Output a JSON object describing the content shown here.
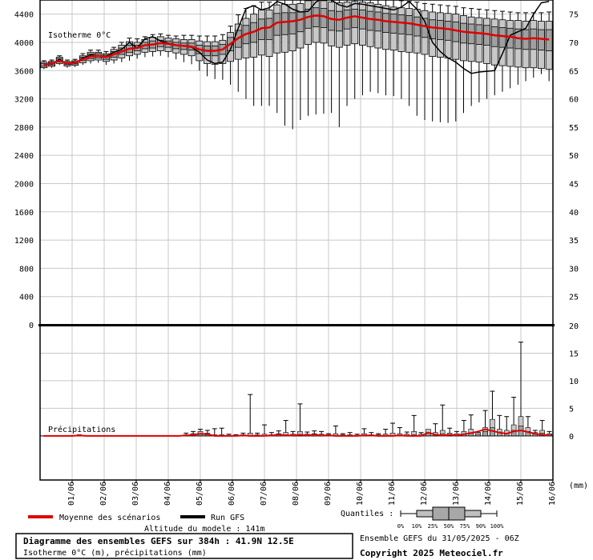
{
  "chart_data": [
    {
      "type": "box",
      "panel": "isotherm",
      "panel_label": "Isotherme 0°C",
      "units": "m",
      "x_labels": [
        "01/06",
        "02/06",
        "03/06",
        "04/06",
        "05/06",
        "06/06",
        "07/06",
        "08/06",
        "09/06",
        "10/06",
        "11/06",
        "12/06",
        "13/06",
        "14/06",
        "15/06",
        "16/06"
      ],
      "y_left_ticks": [
        0,
        400,
        800,
        1200,
        1600,
        2000,
        2400,
        2800,
        3200,
        3600,
        4000,
        4400
      ],
      "y_right_ticks": [
        25,
        30,
        35,
        40,
        45,
        50,
        55,
        60,
        65,
        70,
        75
      ],
      "ylim": [
        0,
        4600
      ],
      "grid": true,
      "series": [
        {
          "name": "Moyenne des scénarios",
          "color": "#e00000",
          "values": [
            3680,
            3700,
            3740,
            3700,
            3710,
            3760,
            3800,
            3810,
            3790,
            3830,
            3870,
            3910,
            3920,
            3960,
            3970,
            3990,
            3980,
            3960,
            3950,
            3940,
            3900,
            3880,
            3880,
            3900,
            3980,
            4060,
            4120,
            4150,
            4200,
            4210,
            4280,
            4290,
            4300,
            4320,
            4360,
            4380,
            4370,
            4330,
            4320,
            4350,
            4370,
            4350,
            4330,
            4320,
            4300,
            4290,
            4280,
            4270,
            4250,
            4230,
            4210,
            4200,
            4190,
            4170,
            4150,
            4140,
            4130,
            4120,
            4100,
            4090,
            4080,
            4060,
            4050,
            4060,
            4050,
            4040
          ]
        },
        {
          "name": "Run GFS",
          "color": "#000000",
          "values": [
            3680,
            3690,
            3760,
            3690,
            3700,
            3780,
            3820,
            3810,
            3800,
            3860,
            3900,
            4000,
            3920,
            4050,
            4080,
            4020,
            3990,
            3960,
            3950,
            3930,
            3860,
            3750,
            3700,
            3720,
            3900,
            4200,
            4480,
            4520,
            4460,
            4490,
            4580,
            4540,
            4470,
            4430,
            4440,
            4570,
            4630,
            4600,
            4530,
            4500,
            4550,
            4540,
            4520,
            4500,
            4480,
            4460,
            4500,
            4580,
            4470,
            4300,
            4000,
            3870,
            3780,
            3720,
            3630,
            3560,
            3580,
            3590,
            3600,
            3840,
            4100,
            4150,
            4200,
            4400,
            4560,
            4580
          ]
        },
        {
          "name": "box_q90",
          "values": [
            3720,
            3730,
            3790,
            3730,
            3740,
            3810,
            3860,
            3860,
            3840,
            3900,
            3960,
            4010,
            4000,
            4040,
            4070,
            4080,
            4060,
            4050,
            4040,
            4040,
            4020,
            4010,
            4010,
            4030,
            4140,
            4260,
            4340,
            4400,
            4460,
            4460,
            4530,
            4540,
            4540,
            4550,
            4590,
            4600,
            4590,
            4570,
            4560,
            4570,
            4580,
            4570,
            4560,
            4540,
            4520,
            4500,
            4490,
            4480,
            4470,
            4450,
            4430,
            4420,
            4410,
            4400,
            4380,
            4360,
            4350,
            4340,
            4330,
            4320,
            4310,
            4310,
            4300,
            4310,
            4300,
            4300
          ]
        },
        {
          "name": "box_q75",
          "values": [
            3700,
            3715,
            3770,
            3715,
            3725,
            3790,
            3835,
            3840,
            3820,
            3870,
            3920,
            3960,
            3960,
            4000,
            4020,
            4030,
            4020,
            4000,
            3990,
            3990,
            3960,
            3950,
            3950,
            3970,
            4070,
            4170,
            4240,
            4280,
            4330,
            4340,
            4410,
            4420,
            4420,
            4430,
            4470,
            4490,
            4480,
            4450,
            4440,
            4460,
            4470,
            4460,
            4440,
            4430,
            4410,
            4400,
            4390,
            4380,
            4360,
            4340,
            4320,
            4310,
            4300,
            4290,
            4270,
            4260,
            4250,
            4240,
            4220,
            4210,
            4200,
            4190,
            4180,
            4190,
            4180,
            4180
          ]
        },
        {
          "name": "box_q25",
          "values": [
            3660,
            3680,
            3720,
            3685,
            3695,
            3740,
            3770,
            3780,
            3760,
            3790,
            3830,
            3860,
            3880,
            3910,
            3920,
            3940,
            3930,
            3910,
            3900,
            3890,
            3840,
            3810,
            3810,
            3830,
            3880,
            3930,
            3980,
            4000,
            4040,
            4040,
            4100,
            4110,
            4120,
            4150,
            4200,
            4220,
            4210,
            4170,
            4160,
            4190,
            4210,
            4190,
            4170,
            4160,
            4140,
            4130,
            4120,
            4110,
            4090,
            4070,
            4050,
            4040,
            4030,
            4010,
            3990,
            3980,
            3970,
            3960,
            3940,
            3930,
            3920,
            3910,
            3900,
            3900,
            3890,
            3880
          ]
        },
        {
          "name": "box_q10",
          "values": [
            3640,
            3660,
            3700,
            3665,
            3675,
            3710,
            3740,
            3750,
            3730,
            3750,
            3780,
            3810,
            3830,
            3860,
            3870,
            3880,
            3870,
            3850,
            3830,
            3810,
            3740,
            3700,
            3690,
            3700,
            3730,
            3760,
            3780,
            3790,
            3820,
            3800,
            3850,
            3860,
            3880,
            3920,
            3970,
            4000,
            3990,
            3950,
            3930,
            3960,
            3980,
            3960,
            3940,
            3920,
            3900,
            3890,
            3870,
            3860,
            3850,
            3830,
            3800,
            3790,
            3780,
            3760,
            3740,
            3730,
            3720,
            3700,
            3680,
            3670,
            3660,
            3650,
            3640,
            3640,
            3630,
            3620
          ]
        },
        {
          "name": "box_max",
          "values": [
            3740,
            3750,
            3810,
            3750,
            3760,
            3840,
            3890,
            3890,
            3870,
            3930,
            4000,
            4060,
            4050,
            4080,
            4110,
            4120,
            4100,
            4090,
            4100,
            4100,
            4090,
            4090,
            4090,
            4110,
            4230,
            4390,
            4480,
            4520,
            4570,
            4570,
            4620,
            4640,
            4640,
            4650,
            4680,
            4690,
            4680,
            4660,
            4650,
            4660,
            4670,
            4660,
            4650,
            4640,
            4620,
            4600,
            4590,
            4580,
            4570,
            4550,
            4540,
            4530,
            4520,
            4510,
            4490,
            4480,
            4470,
            4460,
            4450,
            4440,
            4430,
            4420,
            4420,
            4420,
            4420,
            4430
          ]
        },
        {
          "name": "box_min",
          "values": [
            3620,
            3640,
            3680,
            3640,
            3650,
            3680,
            3700,
            3710,
            3680,
            3700,
            3720,
            3740,
            3770,
            3790,
            3800,
            3810,
            3790,
            3760,
            3720,
            3690,
            3600,
            3520,
            3480,
            3470,
            3400,
            3300,
            3200,
            3100,
            3100,
            3100,
            3000,
            2820,
            2770,
            2900,
            2960,
            2980,
            2990,
            3000,
            2800,
            3100,
            3200,
            3250,
            3300,
            3280,
            3250,
            3240,
            3200,
            3100,
            2960,
            2900,
            2880,
            2870,
            2860,
            2880,
            3000,
            3100,
            3150,
            3200,
            3250,
            3300,
            3350,
            3400,
            3450,
            3500,
            3550,
            3450
          ]
        }
      ]
    },
    {
      "type": "box",
      "panel": "precipitation",
      "panel_label": "Précipitations",
      "units": "mm",
      "y_right_ticks": [
        0,
        5,
        10,
        15,
        20
      ],
      "ylim": [
        -8,
        20
      ],
      "grid": true,
      "series": [
        {
          "name": "Moyenne des scénarios",
          "color": "#e00000",
          "values": [
            0,
            0,
            0,
            0,
            0,
            0.1,
            0,
            0,
            0,
            0,
            0,
            0,
            0,
            0,
            0,
            0,
            0,
            0,
            0,
            0,
            0.1,
            0.2,
            0.4,
            0.3,
            0,
            0,
            0,
            0,
            0.1,
            0,
            0,
            0,
            0.1,
            0.2,
            0.1,
            0.1,
            0.2,
            0.1,
            0.2,
            0.1,
            0.1,
            0,
            0,
            0,
            0,
            0.1,
            0.1,
            0,
            0,
            0,
            0.1,
            0,
            0,
            0,
            0.6,
            0.2,
            0.1,
            0.2,
            0.1,
            0.3,
            0.5,
            0.8,
            1.2,
            0.9,
            0.6,
            0.4,
            0.8,
            1.0,
            0.7,
            0.4,
            0.2,
            0.1
          ]
        },
        {
          "name": "box_max",
          "values": [
            0,
            0,
            0,
            0,
            0,
            0.2,
            0,
            0,
            0,
            0,
            0,
            0,
            0,
            0,
            0,
            0,
            0,
            0,
            0,
            0,
            0.5,
            0.8,
            1.2,
            1.0,
            1.3,
            1.4,
            0.3,
            0.2,
            0.5,
            7.5,
            0.5,
            2.0,
            0.6,
            0.9,
            2.8,
            0.8,
            5.8,
            0.7,
            0.9,
            0.8,
            0.4,
            1.8,
            0.4,
            0.6,
            0.3,
            1.3,
            0.6,
            0.4,
            1.2,
            2.3,
            1.5,
            0.7,
            3.7,
            0.6,
            1.0,
            2.2,
            5.6,
            1.4,
            0.8,
            2.8,
            3.8,
            0.6,
            4.6,
            8.1,
            3.7,
            3.5,
            7.0,
            17.0,
            3.5,
            1.0,
            2.8,
            0.8
          ]
        },
        {
          "name": "box_q90",
          "values": [
            0,
            0,
            0,
            0,
            0,
            0.1,
            0,
            0,
            0,
            0,
            0,
            0,
            0,
            0,
            0,
            0,
            0,
            0,
            0,
            0,
            0.2,
            0.4,
            0.8,
            0.5,
            0.2,
            0.2,
            0.1,
            0.1,
            0.2,
            0.5,
            0.2,
            0.3,
            0.2,
            0.4,
            0.6,
            0.3,
            0.8,
            0.3,
            0.4,
            0.3,
            0.2,
            0.4,
            0.2,
            0.2,
            0.1,
            0.4,
            0.2,
            0.2,
            0.3,
            0.5,
            0.4,
            0.3,
            0.8,
            0.3,
            1.2,
            0.6,
            1.0,
            0.5,
            0.4,
            0.8,
            1.2,
            0.6,
            1.5,
            3.0,
            1.2,
            1.0,
            2.0,
            3.5,
            1.5,
            0.6,
            1.0,
            0.4
          ]
        },
        {
          "name": "box_q75",
          "values": [
            0,
            0,
            0,
            0,
            0,
            0,
            0,
            0,
            0,
            0,
            0,
            0,
            0,
            0,
            0,
            0,
            0,
            0,
            0,
            0,
            0.1,
            0.2,
            0.3,
            0.2,
            0,
            0,
            0,
            0,
            0,
            0.1,
            0,
            0,
            0,
            0.1,
            0.2,
            0.1,
            0.2,
            0.1,
            0.1,
            0.1,
            0,
            0.1,
            0,
            0,
            0,
            0.1,
            0,
            0,
            0.1,
            0.1,
            0.1,
            0.1,
            0.2,
            0.1,
            0.6,
            0.3,
            0.4,
            0.2,
            0.2,
            0.3,
            0.6,
            0.3,
            0.8,
            1.5,
            0.7,
            0.5,
            1.0,
            1.8,
            0.8,
            0.3,
            0.5,
            0.2
          ]
        }
      ]
    }
  ],
  "legend": {
    "mean_label": "Moyenne des scénarios",
    "mean_color": "#e00000",
    "run_label": "Run GFS",
    "run_color": "#000000",
    "altitude": "Altitude du modele : 141m"
  },
  "quantiles": {
    "label": "Quantiles :",
    "ticks": [
      "0%",
      "10%",
      "25%",
      "50%",
      "75%",
      "90%",
      "100%"
    ]
  },
  "footer": {
    "title": "Diagramme des ensembles GEFS sur 384h : 41.9N 12.5E",
    "subtitle": "Isotherme 0°C (m), précipitations (mm)",
    "run": "Ensemble GEFS du 31/05/2025 - 06Z",
    "copyright": "Copyright 2025 Meteociel.fr"
  },
  "precip_unit_label": "(mm)"
}
